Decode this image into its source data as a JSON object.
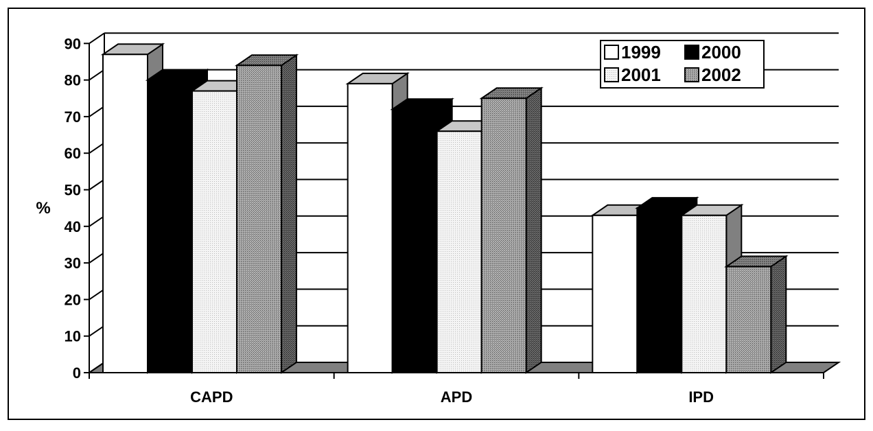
{
  "chart_data": {
    "type": "bar",
    "categories": [
      "CAPD",
      "APD",
      "IPD"
    ],
    "series": [
      {
        "name": "1999",
        "values": [
          87,
          79,
          43
        ],
        "color": "#ffffff",
        "pattern": "solid-white"
      },
      {
        "name": "2000",
        "values": [
          80,
          72,
          45
        ],
        "color": "#000000",
        "pattern": "solid-black"
      },
      {
        "name": "2001",
        "values": [
          77,
          66,
          43
        ],
        "color": "#eeeeee",
        "pattern": "light-dots"
      },
      {
        "name": "2002",
        "values": [
          84,
          75,
          29
        ],
        "color": "#9a9a9a",
        "pattern": "dark-dots"
      }
    ],
    "ylabel": "%",
    "ylim": [
      0,
      90
    ],
    "yticks": [
      "0",
      "10",
      "20",
      "30",
      "40",
      "50",
      "60",
      "70",
      "80",
      "90"
    ],
    "grid": true,
    "legend_position": "top-right",
    "style": "3d-column"
  }
}
